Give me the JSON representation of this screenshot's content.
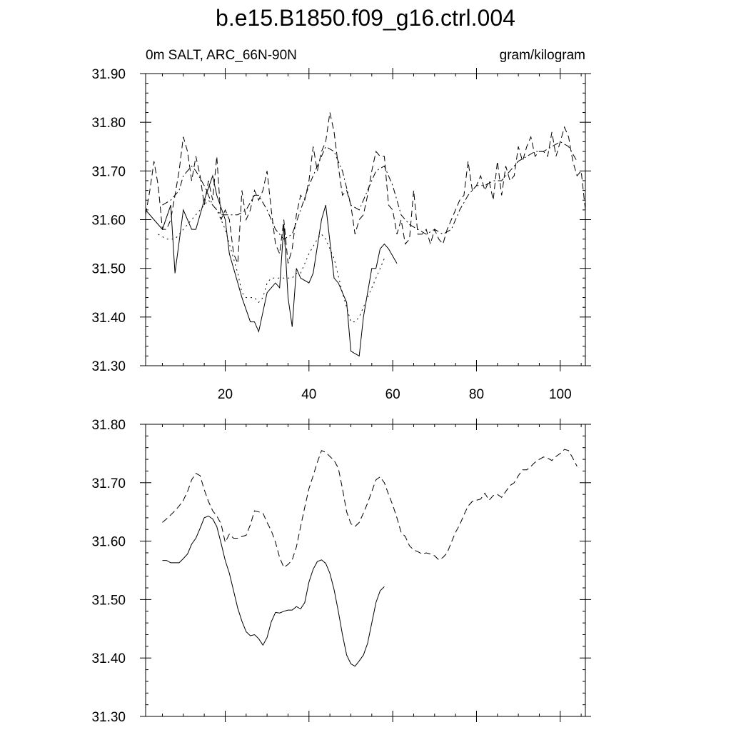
{
  "chart_data": [
    {
      "type": "line",
      "title": "b.e15.B1850.f09_g16.ctrl.004",
      "subtitle_left": "0m SALT, ARC_66N-90N",
      "subtitle_right": "gram/kilogram",
      "xlim": [
        1,
        106
      ],
      "ylim": [
        31.3,
        31.9
      ],
      "xticks": [
        20,
        40,
        60,
        80,
        100
      ],
      "yticks": [
        "31.30",
        "31.40",
        "31.50",
        "31.60",
        "31.70",
        "31.80",
        "31.90"
      ],
      "series": [
        {
          "style": "solid",
          "x": [
            1,
            3,
            5,
            7,
            8,
            10,
            12,
            13,
            15,
            17,
            18,
            20,
            21,
            23,
            24,
            26,
            27,
            28,
            30,
            32,
            33,
            34,
            35,
            36,
            37,
            38,
            40,
            41,
            43,
            44,
            46,
            47,
            49,
            50,
            52,
            53,
            55,
            56,
            57,
            58,
            59,
            61
          ],
          "y": [
            31.62,
            31.6,
            31.58,
            31.63,
            31.49,
            31.62,
            31.58,
            31.58,
            31.64,
            31.69,
            31.65,
            31.6,
            31.53,
            31.47,
            31.44,
            31.39,
            31.39,
            31.37,
            31.45,
            31.47,
            31.46,
            31.59,
            31.44,
            31.38,
            31.5,
            31.48,
            31.47,
            31.49,
            31.6,
            31.63,
            31.48,
            31.47,
            31.43,
            31.33,
            31.32,
            31.4,
            31.5,
            31.5,
            31.54,
            31.55,
            31.54,
            31.51
          ]
        },
        {
          "style": "dashed",
          "x": [
            1,
            2,
            3,
            4,
            5,
            6,
            7,
            8,
            9,
            10,
            11,
            12,
            13,
            14,
            15,
            16,
            17,
            18,
            19,
            20,
            21,
            22,
            23,
            24,
            25,
            26,
            27,
            28,
            29,
            30,
            31,
            32,
            33,
            34,
            35,
            36,
            37,
            38,
            39,
            40,
            41,
            42,
            43,
            44,
            45,
            46,
            47,
            48,
            49,
            50,
            51,
            52,
            53,
            54,
            55,
            56,
            57,
            58,
            59,
            60,
            61,
            62,
            63,
            64,
            65,
            66,
            67,
            68,
            69,
            70,
            71,
            72,
            73,
            74,
            75,
            76,
            77,
            78,
            79,
            80,
            81,
            82,
            83,
            84,
            85,
            86,
            87,
            88,
            89,
            90,
            91,
            92,
            93,
            94,
            95,
            96,
            97,
            98,
            99,
            100,
            101,
            102,
            103,
            104,
            105,
            106
          ],
          "y": [
            31.61,
            31.66,
            31.72,
            31.67,
            31.58,
            31.58,
            31.6,
            31.65,
            31.7,
            31.77,
            31.74,
            31.68,
            31.73,
            31.69,
            31.63,
            31.68,
            31.64,
            31.73,
            31.6,
            31.62,
            31.6,
            31.53,
            31.51,
            31.66,
            31.6,
            31.62,
            31.66,
            31.64,
            31.66,
            31.7,
            31.62,
            31.55,
            31.53,
            31.6,
            31.51,
            31.54,
            31.61,
            31.65,
            31.64,
            31.68,
            31.75,
            31.7,
            31.74,
            31.76,
            31.82,
            31.78,
            31.71,
            31.65,
            31.66,
            31.63,
            31.57,
            31.6,
            31.61,
            31.65,
            31.7,
            31.74,
            31.73,
            31.73,
            31.63,
            31.62,
            31.57,
            31.6,
            31.55,
            31.56,
            31.66,
            31.57,
            31.57,
            31.58,
            31.55,
            31.58,
            31.56,
            31.55,
            31.58,
            31.6,
            31.62,
            31.64,
            31.65,
            31.72,
            31.66,
            31.67,
            31.69,
            31.66,
            31.68,
            31.64,
            31.72,
            31.65,
            31.71,
            31.68,
            31.69,
            31.75,
            31.72,
            31.75,
            31.77,
            31.73,
            31.74,
            31.74,
            31.73,
            31.78,
            31.73,
            31.76,
            31.79,
            31.77,
            31.72,
            31.69,
            31.7,
            31.62
          ]
        },
        {
          "style": "dotted",
          "x": [
            4,
            6,
            8,
            10,
            12,
            14,
            16,
            17,
            18,
            19,
            20,
            21,
            22,
            23,
            24,
            25,
            26,
            27,
            28,
            29,
            30,
            31,
            32,
            33,
            34,
            35,
            36,
            37,
            38,
            40,
            42,
            43,
            44,
            46,
            48,
            50,
            51,
            52,
            54,
            56,
            58
          ],
          "y": [
            31.57,
            31.56,
            31.56,
            31.58,
            31.6,
            31.62,
            31.64,
            31.63,
            31.62,
            31.6,
            31.58,
            31.55,
            31.52,
            31.49,
            31.45,
            31.44,
            31.44,
            31.44,
            31.43,
            31.44,
            31.47,
            31.48,
            31.48,
            31.48,
            31.48,
            31.48,
            31.48,
            31.49,
            31.49,
            31.53,
            31.56,
            31.57,
            31.56,
            31.52,
            31.45,
            31.39,
            31.39,
            31.4,
            31.44,
            31.48,
            31.52
          ]
        },
        {
          "style": "dash-dot",
          "x": [
            5,
            7,
            9,
            10,
            12,
            13,
            15,
            17,
            19,
            21,
            23,
            25,
            27,
            28,
            30,
            32,
            34,
            36,
            38,
            40,
            42,
            44,
            46,
            48,
            50,
            52,
            54,
            56,
            58,
            60,
            62,
            64,
            66,
            68,
            70,
            72,
            74,
            76,
            78,
            80,
            82,
            84,
            86,
            88,
            90,
            92,
            94,
            96,
            98,
            100,
            102,
            104
          ],
          "y": [
            31.63,
            31.64,
            31.66,
            31.69,
            31.71,
            31.7,
            31.67,
            31.63,
            31.61,
            31.61,
            31.61,
            31.62,
            31.65,
            31.65,
            31.62,
            31.58,
            31.56,
            31.57,
            31.62,
            31.67,
            31.71,
            31.75,
            31.74,
            31.7,
            31.63,
            31.62,
            31.66,
            31.7,
            31.71,
            31.67,
            31.61,
            31.59,
            31.58,
            31.57,
            31.58,
            31.57,
            31.58,
            31.62,
            31.65,
            31.67,
            31.67,
            31.68,
            31.68,
            31.7,
            31.72,
            31.73,
            31.74,
            31.74,
            31.75,
            31.76,
            31.75,
            31.72
          ]
        }
      ]
    },
    {
      "type": "line",
      "xlim": [
        1,
        106
      ],
      "ylim": [
        31.3,
        31.8
      ],
      "xticks": [
        20,
        40,
        60,
        80,
        100
      ],
      "yticks": [
        "31.30",
        "31.40",
        "31.50",
        "31.60",
        "31.70",
        "31.80"
      ],
      "series": [
        {
          "style": "solid",
          "x": [
            5,
            6,
            7,
            8,
            9,
            10,
            11,
            12,
            13,
            14,
            15,
            16,
            17,
            18,
            19,
            20,
            21,
            22,
            23,
            24,
            25,
            26,
            27,
            28,
            29,
            30,
            31,
            32,
            33,
            34,
            35,
            36,
            37,
            38,
            39,
            40,
            41,
            42,
            43,
            44,
            45,
            46,
            47,
            48,
            49,
            50,
            51,
            52,
            53,
            54,
            55,
            56,
            57,
            58
          ],
          "y": [
            31.567,
            31.567,
            31.563,
            31.563,
            31.563,
            31.57,
            31.578,
            31.595,
            31.605,
            31.622,
            31.64,
            31.643,
            31.638,
            31.625,
            31.597,
            31.567,
            31.545,
            31.515,
            31.485,
            31.463,
            31.445,
            31.438,
            31.44,
            31.433,
            31.422,
            31.435,
            31.462,
            31.478,
            31.477,
            31.48,
            31.482,
            31.482,
            31.488,
            31.484,
            31.495,
            31.53,
            31.552,
            31.565,
            31.568,
            31.562,
            31.545,
            31.517,
            31.48,
            31.44,
            31.405,
            31.39,
            31.386,
            31.395,
            31.405,
            31.425,
            31.46,
            31.495,
            31.515,
            31.522
          ]
        },
        {
          "style": "dashed",
          "x": [
            5,
            6,
            7,
            8,
            9,
            10,
            11,
            12,
            13,
            14,
            15,
            16,
            17,
            18,
            19,
            20,
            21,
            22,
            23,
            24,
            25,
            26,
            27,
            28,
            29,
            30,
            31,
            32,
            33,
            34,
            35,
            36,
            37,
            38,
            39,
            40,
            41,
            42,
            43,
            44,
            45,
            46,
            47,
            48,
            49,
            50,
            51,
            52,
            53,
            54,
            55,
            56,
            57,
            58,
            59,
            60,
            61,
            62,
            63,
            64,
            65,
            66,
            67,
            68,
            69,
            70,
            71,
            72,
            73,
            74,
            75,
            76,
            77,
            78,
            79,
            80,
            81,
            82,
            83,
            84,
            85,
            86,
            87,
            88,
            89,
            90,
            91,
            92,
            93,
            94,
            95,
            96,
            97,
            98,
            99,
            100,
            101,
            102,
            103,
            104
          ],
          "y": [
            31.632,
            31.638,
            31.645,
            31.652,
            31.66,
            31.67,
            31.685,
            31.705,
            31.716,
            31.712,
            31.688,
            31.668,
            31.652,
            31.643,
            31.63,
            31.598,
            31.612,
            31.605,
            31.605,
            31.608,
            31.61,
            31.628,
            31.652,
            31.65,
            31.648,
            31.632,
            31.618,
            31.598,
            31.572,
            31.555,
            31.56,
            31.568,
            31.59,
            31.625,
            31.658,
            31.69,
            31.712,
            31.735,
            31.755,
            31.752,
            31.745,
            31.738,
            31.725,
            31.69,
            31.65,
            31.63,
            31.625,
            31.632,
            31.648,
            31.665,
            31.685,
            31.705,
            31.71,
            31.7,
            31.68,
            31.662,
            31.64,
            31.615,
            31.608,
            31.592,
            31.585,
            31.582,
            31.578,
            31.58,
            31.578,
            31.575,
            31.568,
            31.572,
            31.58,
            31.598,
            31.615,
            31.628,
            31.645,
            31.66,
            31.668,
            31.67,
            31.672,
            31.682,
            31.67,
            31.678,
            31.68,
            31.675,
            31.685,
            31.695,
            31.7,
            31.712,
            31.722,
            31.722,
            31.728,
            31.735,
            31.74,
            31.744,
            31.742,
            31.738,
            31.745,
            31.75,
            31.757,
            31.755,
            31.742,
            31.728
          ]
        }
      ]
    }
  ]
}
